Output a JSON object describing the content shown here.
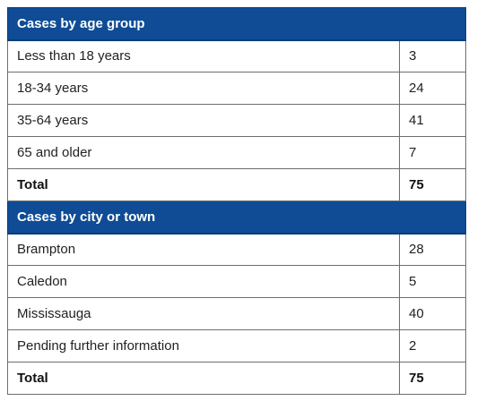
{
  "sections": [
    {
      "title": "Cases by age group",
      "rows": [
        {
          "label": "Less than 18 years",
          "value": "3"
        },
        {
          "label": "18-34 years",
          "value": "24"
        },
        {
          "label": "35-64 years",
          "value": "41"
        },
        {
          "label": "65 and older",
          "value": "7"
        }
      ],
      "total": {
        "label": "Total",
        "value": "75"
      }
    },
    {
      "title": "Cases by city or town",
      "rows": [
        {
          "label": "Brampton",
          "value": "28"
        },
        {
          "label": "Caledon",
          "value": "5"
        },
        {
          "label": "Mississauga",
          "value": "40"
        },
        {
          "label": "Pending further information",
          "value": "2"
        }
      ],
      "total": {
        "label": "Total",
        "value": "75"
      }
    }
  ],
  "colors": {
    "header_bg": "#0f4c95",
    "border": "#6e6e6e"
  }
}
